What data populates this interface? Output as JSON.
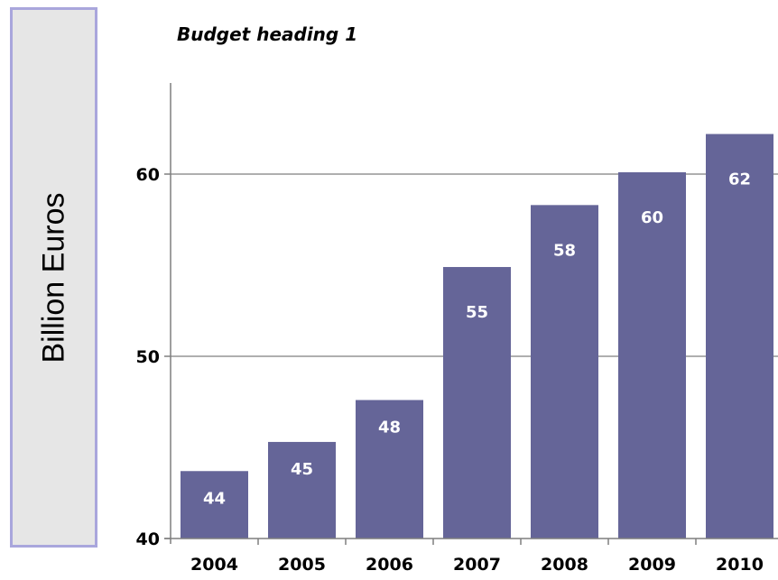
{
  "chart_data": {
    "type": "bar",
    "title": "Budget heading 1",
    "ylabel": "Billion Euros",
    "xlabel": "",
    "categories": [
      "2004",
      "2005",
      "2006",
      "2007",
      "2008",
      "2009",
      "2010"
    ],
    "values": [
      43.7,
      45.3,
      47.6,
      54.9,
      58.3,
      60.1,
      62.2
    ],
    "data_labels": [
      "44",
      "45",
      "48",
      "55",
      "58",
      "60",
      "62"
    ],
    "ylim": [
      40,
      65
    ],
    "yticks": [
      40,
      50,
      60
    ],
    "grid": true,
    "legend": "none",
    "colors": {
      "bar": "#656598",
      "bar_label": "#ffffff",
      "gridline": "#7f7f7f",
      "axis": "#7f7f7f",
      "ylabel_box_fill": "#e6e6e6",
      "ylabel_box_border": "#a9a6dc"
    }
  }
}
